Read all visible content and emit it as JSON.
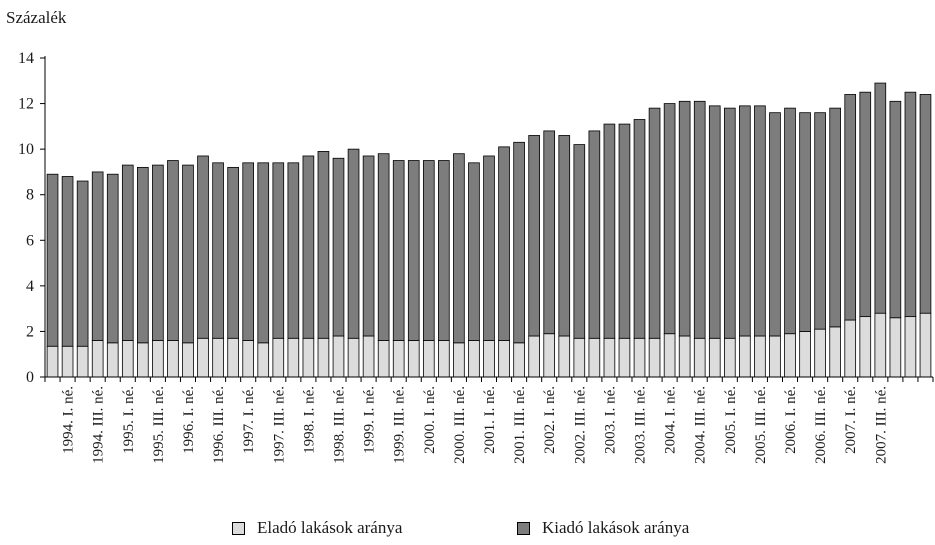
{
  "chart_data": {
    "type": "bar",
    "stacked": true,
    "ylabel": "Százalék",
    "xlabel": "",
    "ylim": [
      0,
      14
    ],
    "yticks": [
      0,
      2,
      4,
      6,
      8,
      10,
      12,
      14
    ],
    "grid": false,
    "legend_position": "bottom",
    "tick_label_categories": [
      "1994. I. né.",
      "1994. III. né.",
      "1995. I. né.",
      "1995. III. né.",
      "1996. I. né.",
      "1996. III. né.",
      "1997. I. né.",
      "1997. III. né.",
      "1998. I. né.",
      "1998. III. né.",
      "1999. I. né.",
      "1999. III. né.",
      "2000. I. né.",
      "2000. III. né.",
      "2001. I. né.",
      "2001. III. né.",
      "2002. I. né.",
      "2002. III. né.",
      "2003. I. né.",
      "2003. III. né.",
      "2004. I. né.",
      "2004. III. né.",
      "2005. I. né.",
      "2005. III. né.",
      "2006. I. né.",
      "2006. III. né.",
      "2007. I. né.",
      "2007. III. né."
    ],
    "series": [
      {
        "name": "Eladó lakások aránya",
        "color": "#dcdcdc",
        "values": [
          1.35,
          1.35,
          1.35,
          1.6,
          1.5,
          1.6,
          1.5,
          1.6,
          1.6,
          1.5,
          1.7,
          1.7,
          1.7,
          1.6,
          1.5,
          1.7,
          1.7,
          1.7,
          1.7,
          1.8,
          1.7,
          1.8,
          1.6,
          1.6,
          1.6,
          1.6,
          1.6,
          1.5,
          1.6,
          1.6,
          1.6,
          1.5,
          1.8,
          1.9,
          1.8,
          1.7,
          1.7,
          1.7,
          1.7,
          1.7,
          1.7,
          1.9,
          1.8,
          1.7,
          1.7,
          1.7,
          1.8,
          1.8,
          1.8,
          1.9,
          2.0,
          2.1,
          2.2,
          2.5,
          2.65,
          2.8,
          2.6,
          2.65,
          2.8
        ]
      },
      {
        "name": "Kiadó lakások aránya",
        "color": "#7d7d7d",
        "values": [
          7.55,
          7.45,
          7.25,
          7.4,
          7.4,
          7.7,
          7.7,
          7.7,
          7.9,
          7.8,
          8.0,
          7.7,
          7.5,
          7.8,
          7.9,
          7.7,
          7.7,
          8.0,
          8.2,
          7.8,
          8.3,
          7.9,
          8.2,
          7.9,
          7.9,
          7.9,
          7.9,
          8.3,
          7.8,
          8.1,
          8.5,
          8.8,
          8.8,
          8.9,
          8.8,
          8.5,
          9.1,
          9.4,
          9.4,
          9.6,
          10.1,
          10.1,
          10.3,
          10.4,
          10.2,
          10.1,
          10.1,
          10.1,
          9.8,
          9.9,
          9.6,
          9.5,
          9.6,
          9.9,
          9.85,
          10.1,
          9.5,
          9.85,
          9.6
        ]
      }
    ]
  }
}
